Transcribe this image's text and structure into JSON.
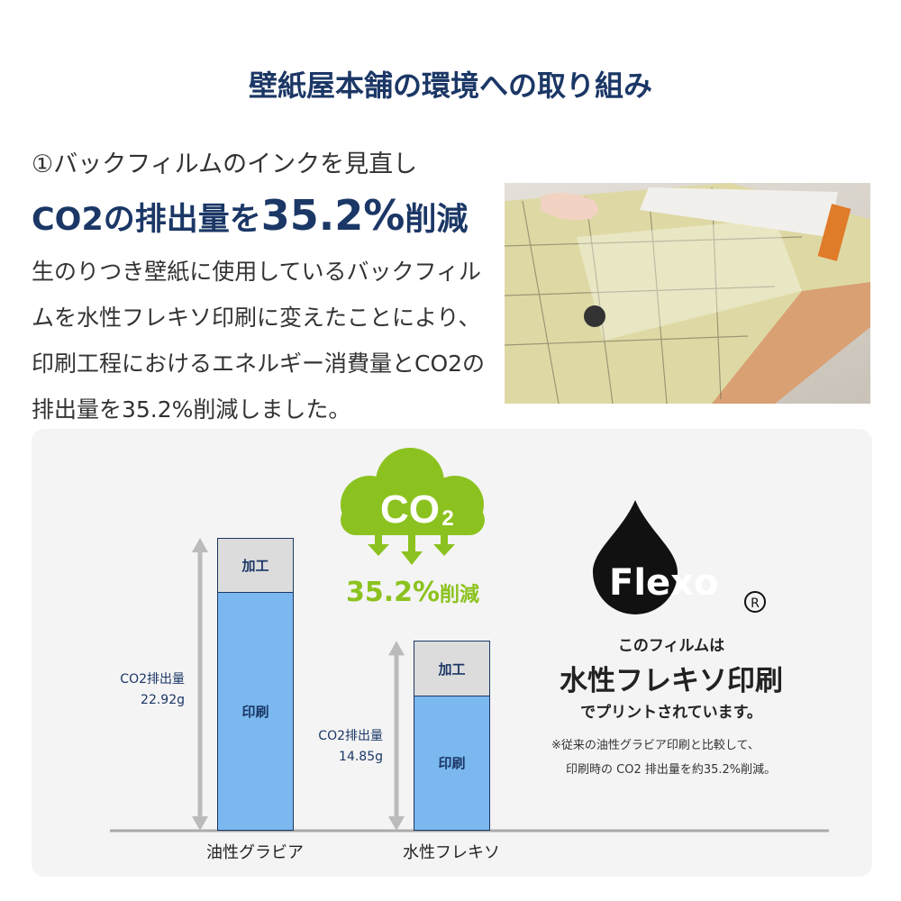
{
  "title": "壁紙屋本舗の環境への取り組み",
  "section": {
    "subtitle": "①バックフィルムのインクを見直し",
    "headline_prefix": "CO2の排出量を",
    "headline_value": "35.2%",
    "headline_suffix": "削減",
    "paragraph": "生のりつき壁紙に使用しているバックフィルムを水性フレキソ印刷に変えたことにより、印刷工程におけるエネルギー消費量とCO2の排出量を35.2%削減しました。"
  },
  "photo": {
    "description_icon": "wallpaper-roll-photo"
  },
  "cloud": {
    "text": "CO",
    "subscript": "2",
    "reduction_value": "35.2%",
    "reduction_suffix": "削減",
    "color": "#8cc21f"
  },
  "chart_data": {
    "type": "bar",
    "stacked": true,
    "categories": [
      "油性グラビア",
      "水性フレキソ"
    ],
    "totals": [
      22.92,
      14.85
    ],
    "total_label": "CO2排出量",
    "total_texts": [
      "22.92g",
      "14.85g"
    ],
    "series": [
      {
        "name": "印刷",
        "values": [
          18.7,
          10.6
        ],
        "color": "#7ab8ef"
      },
      {
        "name": "加工",
        "values": [
          4.22,
          4.25
        ],
        "color": "#dcdcdc"
      }
    ],
    "unit": "g",
    "ylim": [
      0,
      22.92
    ],
    "grid": false
  },
  "flexo": {
    "logo_text": "Flexo",
    "registered": "®",
    "line1": "このフィルムは",
    "line2": "水性フレキソ印刷",
    "line3": "でプリントされています。",
    "note1": "※従来の油性グラビア印刷と比較して、",
    "note2": "印刷時の CO2 排出量を約35.2%削減。"
  }
}
